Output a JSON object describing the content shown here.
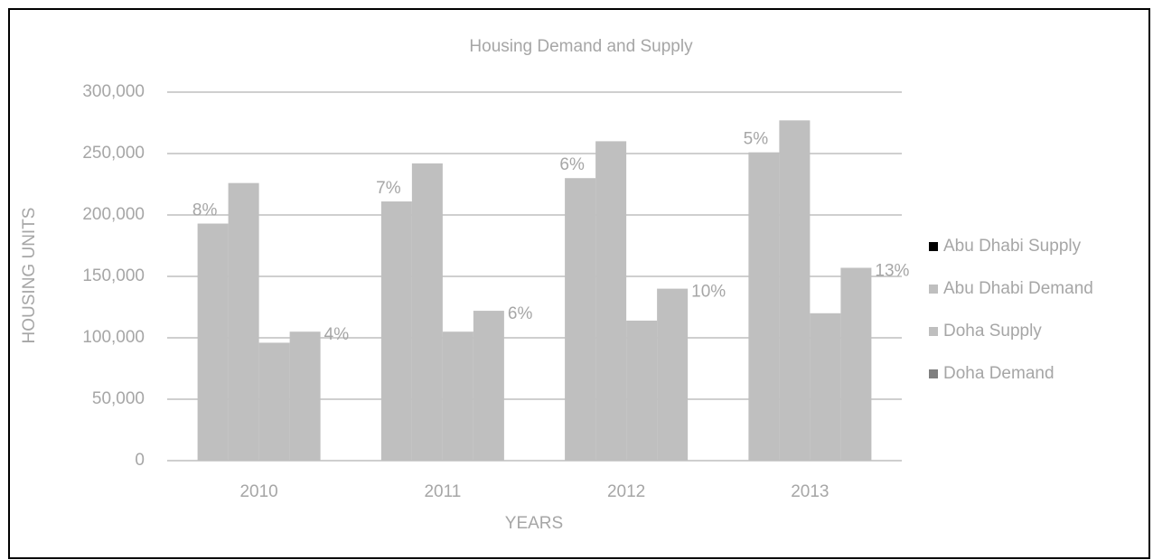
{
  "chart_data": {
    "type": "bar",
    "title": "Housing Demand and Supply",
    "x_label": "YEARS",
    "y_label": "HOUSING UNITS",
    "categories": [
      "2010",
      "2011",
      "2012",
      "2013"
    ],
    "series": [
      {
        "name": "Abu Dhabi Supply",
        "color": "#bfbfbf",
        "values": [
          193000,
          211000,
          230000,
          251000
        ]
      },
      {
        "name": "Abu Dhabi Demand",
        "color": "#bfbfbf",
        "values": [
          226000,
          242000,
          260000,
          277000
        ]
      },
      {
        "name": "Doha Supply",
        "color": "#bfbfbf",
        "values": [
          96000,
          105000,
          114000,
          120000
        ]
      },
      {
        "name": "Doha Demand",
        "color": "#bfbfbf",
        "values": [
          105000,
          122000,
          140000,
          157000
        ]
      }
    ],
    "annotations": [
      "8%",
      "4%",
      "7%",
      "6%",
      "6%",
      "10%",
      "5%",
      "13%"
    ],
    "ylim": [
      0,
      300000
    ],
    "yticks": [
      {
        "value": 0,
        "label": "0"
      },
      {
        "value": 50000,
        "label": "50,000"
      },
      {
        "value": 100000,
        "label": "100,000"
      },
      {
        "value": 150000,
        "label": "150,000"
      },
      {
        "value": 200000,
        "label": "200,000"
      },
      {
        "value": 250000,
        "label": "250,000"
      },
      {
        "value": 300000,
        "label": "300,000"
      }
    ],
    "grid": true,
    "legend": "right"
  }
}
